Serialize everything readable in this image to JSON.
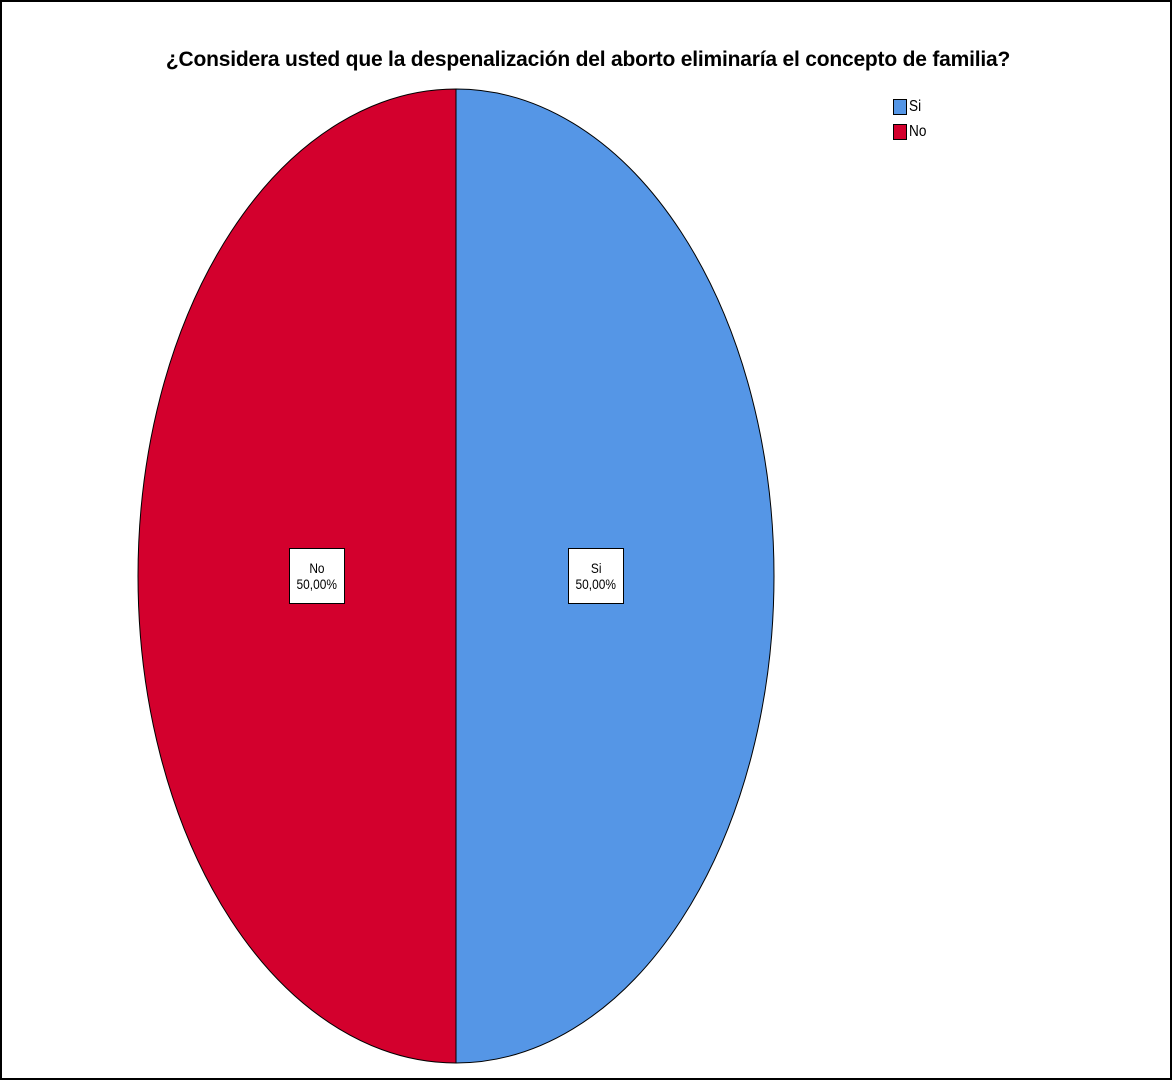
{
  "chart_data": {
    "type": "pie",
    "title": "¿Considera usted que la despenalización del aborto eliminaría el concepto de familia?",
    "slices": [
      {
        "label": "Si",
        "value": 50.0,
        "display": "50,00%",
        "color": "#5596e6"
      },
      {
        "label": "No",
        "value": 50.0,
        "display": "50,00%",
        "color": "#d3002d"
      }
    ],
    "legend": {
      "placement": "top-right",
      "items": [
        {
          "label": "Si",
          "color": "#5596e6"
        },
        {
          "label": "No",
          "color": "#d3002d"
        }
      ]
    }
  }
}
